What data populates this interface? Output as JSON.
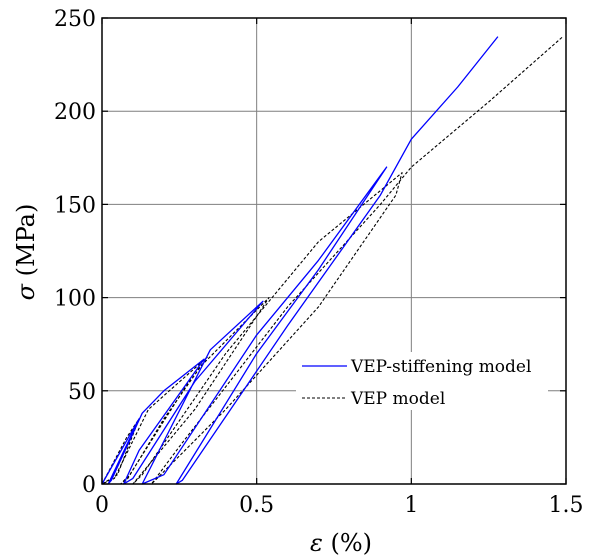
{
  "chart_data": {
    "type": "line",
    "xlabel": {
      "symbol": "ε",
      "unit": " (%)"
    },
    "ylabel": {
      "symbol": "σ",
      "unit": " (MPa)"
    },
    "xlim": [
      0,
      1.5
    ],
    "ylim": [
      0,
      250
    ],
    "x_ticks": [
      0,
      0.5,
      1,
      1.5
    ],
    "x_tick_labels": [
      "0",
      "0.5",
      "1",
      "1.5"
    ],
    "y_ticks": [
      0,
      50,
      100,
      150,
      200,
      250
    ],
    "y_tick_labels": [
      "0",
      "50",
      "100",
      "150",
      "200",
      "250"
    ],
    "grid": true,
    "legend_position": "lower-right",
    "series": [
      {
        "name": "VEP-stiffening model",
        "color": "#0000ff",
        "dash": "solid",
        "points": [
          [
            0.0,
            0
          ],
          [
            0.12,
            35
          ],
          [
            0.02,
            0
          ],
          [
            0.03,
            2
          ],
          [
            0.13,
            38
          ],
          [
            0.2,
            50
          ],
          [
            0.33,
            67
          ],
          [
            0.12,
            18
          ],
          [
            0.07,
            0
          ],
          [
            0.1,
            3
          ],
          [
            0.3,
            55
          ],
          [
            0.52,
            98
          ],
          [
            0.35,
            72
          ],
          [
            0.13,
            0
          ],
          [
            0.2,
            5
          ],
          [
            0.5,
            80
          ],
          [
            0.7,
            120
          ],
          [
            0.92,
            170
          ],
          [
            0.7,
            115
          ],
          [
            0.5,
            70
          ],
          [
            0.24,
            0
          ],
          [
            0.26,
            2
          ],
          [
            0.6,
            85
          ],
          [
            0.9,
            155
          ],
          [
            1.0,
            185
          ],
          [
            1.15,
            213
          ],
          [
            1.28,
            240
          ]
        ]
      },
      {
        "name": "VEP model",
        "color": "#000000",
        "dash": "dashed",
        "points": [
          [
            0.0,
            0
          ],
          [
            0.08,
            25
          ],
          [
            0.12,
            35
          ],
          [
            0.05,
            5
          ],
          [
            0.0,
            0
          ],
          [
            0.04,
            3
          ],
          [
            0.15,
            40
          ],
          [
            0.34,
            68
          ],
          [
            0.2,
            35
          ],
          [
            0.08,
            2
          ],
          [
            0.06,
            0
          ],
          [
            0.09,
            5
          ],
          [
            0.3,
            60
          ],
          [
            0.54,
            100
          ],
          [
            0.48,
            85
          ],
          [
            0.3,
            40
          ],
          [
            0.1,
            0
          ],
          [
            0.13,
            5
          ],
          [
            0.4,
            70
          ],
          [
            0.7,
            130
          ],
          [
            0.97,
            167
          ],
          [
            0.95,
            155
          ],
          [
            0.7,
            95
          ],
          [
            0.4,
            40
          ],
          [
            0.16,
            0
          ],
          [
            0.25,
            20
          ],
          [
            0.6,
            95
          ],
          [
            0.9,
            150
          ],
          [
            1.0,
            170
          ],
          [
            1.25,
            205
          ],
          [
            1.49,
            240
          ]
        ]
      }
    ]
  }
}
